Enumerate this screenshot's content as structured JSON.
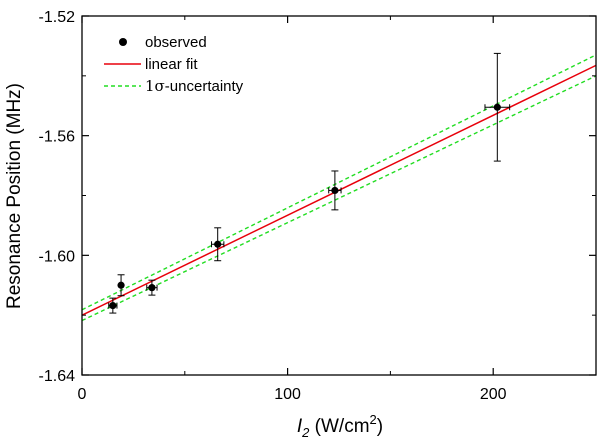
{
  "chart_data": {
    "type": "scatter",
    "xlabel_main": "I",
    "xlabel_sub": "2",
    "xlabel_unit": " (W/cm",
    "xlabel_sup": "2",
    "xlabel_close": ")",
    "ylabel": "Resonance Position (MHz)",
    "xlim": [
      0,
      250
    ],
    "ylim": [
      -1.64,
      -1.52
    ],
    "xticks": [
      0,
      100,
      200
    ],
    "yticks": [
      -1.64,
      -1.6,
      -1.56,
      -1.52
    ],
    "xtick_labels": [
      "0",
      "100",
      "200"
    ],
    "ytick_labels": [
      "-1.64",
      "-1.60",
      "-1.56",
      "-1.52"
    ],
    "legend": {
      "placement": "top-left",
      "observed": "observed",
      "fit": "linear fit",
      "sigma_symbol": "1σ",
      "sigma_rest": "-uncertainty"
    },
    "colors": {
      "observed": "#000000",
      "fit": "#e8000b",
      "uncertainty": "#22dd22"
    },
    "series": [
      {
        "name": "observed",
        "points": [
          {
            "x": 15,
            "y": -1.6168,
            "yerr": 0.0025,
            "xerr": 2
          },
          {
            "x": 19,
            "y": -1.61,
            "yerr": 0.0035,
            "xerr": 0
          },
          {
            "x": 34,
            "y": -1.6108,
            "yerr": 0.0025,
            "xerr": 2.5
          },
          {
            "x": 66,
            "y": -1.5963,
            "yerr": 0.0055,
            "xerr": 3
          },
          {
            "x": 123,
            "y": -1.5783,
            "yerr": 0.0065,
            "xerr": 3
          },
          {
            "x": 202,
            "y": -1.5505,
            "yerr": 0.018,
            "xerr": 6
          }
        ]
      },
      {
        "name": "linear fit",
        "line": {
          "x": [
            0,
            250
          ],
          "y": [
            -1.62,
            -1.5365
          ]
        }
      },
      {
        "name": "1σ-uncertainty",
        "upper": {
          "x": [
            0,
            250
          ],
          "y": [
            -1.6182,
            -1.533
          ]
        },
        "lower": {
          "x": [
            0,
            250
          ],
          "y": [
            -1.6218,
            -1.54
          ]
        }
      }
    ]
  }
}
